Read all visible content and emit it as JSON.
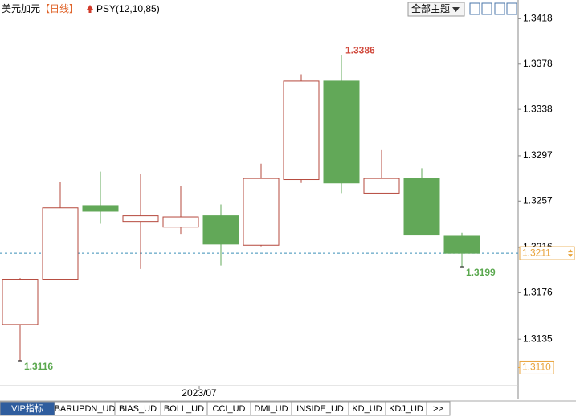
{
  "header": {
    "symbol": "美元加元",
    "period": "【日线】",
    "indicator": "PSY(12,10,85)",
    "theme_button": "全部主题"
  },
  "chart_data": {
    "type": "candlestick",
    "categories": [
      null,
      null,
      null,
      null,
      null,
      null,
      null,
      null,
      null,
      null,
      null,
      null
    ],
    "open": [
      1.3148,
      1.3188,
      1.3253,
      1.3239,
      1.3234,
      1.3244,
      1.3218,
      1.3276,
      1.3363,
      1.3264,
      1.3277,
      1.3226
    ],
    "high": [
      1.3189,
      1.3274,
      1.3283,
      1.3281,
      1.327,
      1.3254,
      1.329,
      1.3369,
      1.3386,
      1.3302,
      1.3286,
      1.3229
    ],
    "low": [
      1.3116,
      1.3188,
      1.3237,
      1.3197,
      1.3228,
      1.32,
      1.3217,
      1.3273,
      1.3264,
      1.3264,
      1.3227,
      1.3199
    ],
    "close": [
      1.3188,
      1.3251,
      1.3248,
      1.3244,
      1.3243,
      1.3219,
      1.3277,
      1.3363,
      1.3273,
      1.3277,
      1.3227,
      1.3211
    ],
    "up_color": "#b5483c",
    "down_color": "#62a858",
    "ylim": [
      1.3094,
      1.3419
    ],
    "yticks": [
      1.3418,
      1.3378,
      1.3338,
      1.3297,
      1.3257,
      1.3216,
      1.3176,
      1.3135
    ],
    "current_price": 1.3211,
    "current_color": "#3a8fb7",
    "bottom_value": {
      "value": 1.311,
      "label": "1.3110"
    },
    "x_marker": "2023/07"
  },
  "tabs": [
    "VIP指标",
    "BARUPDN_UD",
    "BIAS_UD",
    "BOLL_UD",
    "CCI_UD",
    "DMI_UD",
    "INSIDE_UD",
    "KD_UD",
    "KDJ_UD",
    ">>"
  ]
}
